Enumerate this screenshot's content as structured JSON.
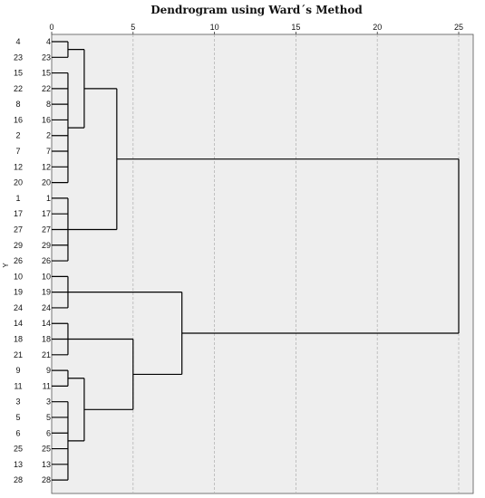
{
  "chart_data": {
    "type": "dendrogram",
    "title": "Dendrogram using Ward´s Method",
    "ylabel": "Y",
    "xlim": [
      0,
      25
    ],
    "xticks": [
      0,
      5,
      10,
      15,
      20,
      25
    ],
    "outer_labels": [
      "4",
      "23",
      "15",
      "22",
      "8",
      "16",
      "2",
      "7",
      "12",
      "20",
      "1",
      "17",
      "27",
      "29",
      "26",
      "10",
      "19",
      "24",
      "14",
      "18",
      "21",
      "9",
      "11",
      "3",
      "5",
      "6",
      "25",
      "13",
      "28"
    ],
    "leaves": [
      "4",
      "23",
      "15",
      "22",
      "8",
      "16",
      "2",
      "7",
      "12",
      "20",
      "1",
      "17",
      "27",
      "29",
      "26",
      "10",
      "19",
      "24",
      "14",
      "18",
      "21",
      "9",
      "11",
      "3",
      "5",
      "6",
      "25",
      "13",
      "28"
    ],
    "grid": true,
    "merges": [
      {
        "id": "A1",
        "children": [
          "L0",
          "L1"
        ],
        "height": 1.0
      },
      {
        "id": "A2",
        "children": [
          "L2",
          "L3",
          "L4",
          "L5",
          "L6",
          "L7",
          "L8",
          "L9"
        ],
        "height": 1.0
      },
      {
        "id": "A3",
        "children": [
          "A1",
          "A2"
        ],
        "height": 2.0
      },
      {
        "id": "A4",
        "children": [
          "L10",
          "L11",
          "L12",
          "L13",
          "L14"
        ],
        "height": 1.0
      },
      {
        "id": "A5",
        "children": [
          "A3",
          "A4"
        ],
        "height": 4.0
      },
      {
        "id": "B1",
        "children": [
          "L15",
          "L16",
          "L17"
        ],
        "height": 1.0
      },
      {
        "id": "B2",
        "children": [
          "L18",
          "L19",
          "L20"
        ],
        "height": 1.0
      },
      {
        "id": "C1",
        "children": [
          "L21",
          "L22"
        ],
        "height": 1.0
      },
      {
        "id": "C2",
        "children": [
          "L23",
          "L24",
          "L25",
          "L26",
          "L27",
          "L28"
        ],
        "height": 1.0
      },
      {
        "id": "C3",
        "children": [
          "C1",
          "C2"
        ],
        "height": 2.0
      },
      {
        "id": "B3",
        "children": [
          "B2",
          "C3"
        ],
        "height": 5.0
      },
      {
        "id": "B4",
        "children": [
          "B1",
          "B3"
        ],
        "height": 8.0
      },
      {
        "id": "ROOT",
        "children": [
          "A5",
          "B4"
        ],
        "height": 25.0
      }
    ]
  }
}
